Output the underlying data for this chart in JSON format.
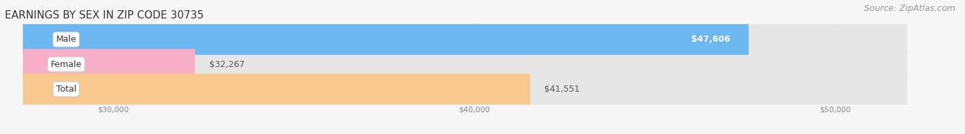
{
  "title": "EARNINGS BY SEX IN ZIP CODE 30735",
  "source": "Source: ZipAtlas.com",
  "categories": [
    "Male",
    "Female",
    "Total"
  ],
  "values": [
    47606,
    32267,
    41551
  ],
  "bar_colors": [
    "#6db8f0",
    "#f8afc8",
    "#f7c98e"
  ],
  "label_inside": [
    true,
    false,
    false
  ],
  "value_label_color_inside": "white",
  "value_label_color_outside": "#555555",
  "xmin": 27500,
  "xmax": 52000,
  "x_axis_min": 27500,
  "xticks": [
    30000,
    40000,
    50000
  ],
  "xtick_labels": [
    "$30,000",
    "$40,000",
    "$50,000"
  ],
  "bar_height": 0.62,
  "background_color": "#f7f7f7",
  "bar_bg_color": "#e6e6e6",
  "title_fontsize": 11,
  "source_fontsize": 9,
  "label_fontsize": 9,
  "category_fontsize": 9,
  "grid_color": "#d0d0d0",
  "tick_color": "#888888"
}
